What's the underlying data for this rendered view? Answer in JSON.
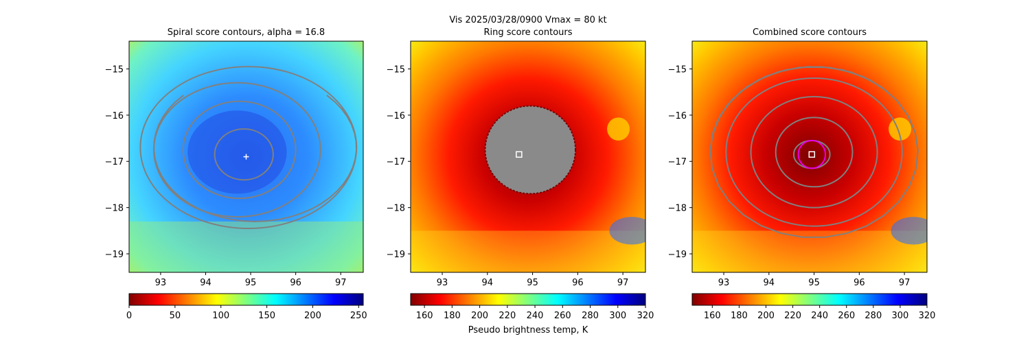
{
  "figure": {
    "suptitle_line1": "Vis  2025/03/28/0900    Vmax = 80 kt",
    "colors": {
      "contour": "#808080",
      "marker": "#ffffff",
      "ring": "#e600e6"
    }
  },
  "chart_data": [
    {
      "type": "heatmap",
      "title": "Spiral score contours, alpha = 16.8",
      "xlabel": "",
      "ylabel": "",
      "xlim": [
        92.3,
        97.5
      ],
      "ylim": [
        -19.4,
        -14.4
      ],
      "xticks": [
        93,
        94,
        95,
        96,
        97
      ],
      "yticks": [
        -15,
        -16,
        -17,
        -18,
        -19
      ],
      "xtick_labels": [
        "93",
        "94",
        "95",
        "96",
        "97"
      ],
      "ytick_labels": [
        "−15",
        "−16",
        "−17",
        "−18",
        "−19"
      ],
      "colormap": "jet_r",
      "colorbar": {
        "range": [
          0,
          255
        ],
        "ticks": [
          0,
          50,
          100,
          150,
          200,
          250
        ],
        "tick_labels": [
          "0",
          "50",
          "100",
          "150",
          "200",
          "250"
        ],
        "label": ""
      },
      "center_marker": {
        "x": 94.9,
        "y": -16.9,
        "symbol": "+"
      },
      "contours": [
        {
          "cx": 94.85,
          "cy": -16.85,
          "rx": 0.65,
          "ry": 0.55
        },
        {
          "cx": 94.75,
          "cy": -16.75,
          "rx": 1.25,
          "ry": 1.05
        },
        {
          "cx": 94.7,
          "cy": -16.75,
          "rx": 1.85,
          "ry": 1.45
        },
        {
          "cx": 94.95,
          "cy": -16.7,
          "rx": 2.4,
          "ry": 1.75
        },
        {
          "cx": 95.1,
          "cy": -16.7,
          "rx": 2.25,
          "ry": 1.6,
          "start": 0.75,
          "end": 2.25
        }
      ]
    },
    {
      "type": "heatmap",
      "title": "Ring score contours",
      "xlabel": "",
      "ylabel": "",
      "xlim": [
        92.3,
        97.5
      ],
      "ylim": [
        -19.4,
        -14.4
      ],
      "xticks": [
        93,
        94,
        95,
        96,
        97
      ],
      "yticks": [
        -15,
        -16,
        -17,
        -18,
        -19
      ],
      "xtick_labels": [
        "93",
        "94",
        "95",
        "96",
        "97"
      ],
      "ytick_labels": [
        "−15",
        "−16",
        "−17",
        "−18",
        "−19"
      ],
      "colormap": "jet_r",
      "colorbar": {
        "range": [
          150,
          320
        ],
        "ticks": [
          160,
          180,
          200,
          220,
          240,
          260,
          280,
          300,
          320
        ],
        "tick_labels": [
          "160",
          "180",
          "200",
          "220",
          "240",
          "260",
          "280",
          "300",
          "320"
        ],
        "label": "Pseudo brightness temp, K"
      },
      "center_marker": {
        "x": 94.7,
        "y": -16.85,
        "symbol": "square"
      },
      "eye_region": {
        "cx": 94.95,
        "cy": -16.75,
        "rx": 1.0,
        "ry": 0.95
      }
    },
    {
      "type": "heatmap",
      "title": "Combined score contours",
      "xlabel": "",
      "ylabel": "",
      "xlim": [
        92.3,
        97.5
      ],
      "ylim": [
        -19.4,
        -14.4
      ],
      "xticks": [
        93,
        94,
        95,
        96,
        97
      ],
      "yticks": [
        -15,
        -16,
        -17,
        -18,
        -19
      ],
      "xtick_labels": [
        "93",
        "94",
        "95",
        "96",
        "97"
      ],
      "ytick_labels": [
        "−15",
        "−16",
        "−17",
        "−18",
        "−19"
      ],
      "colormap": "jet_r",
      "colorbar": {
        "range": [
          145,
          320
        ],
        "ticks": [
          160,
          180,
          200,
          220,
          240,
          260,
          280,
          300,
          320
        ],
        "tick_labels": [
          "160",
          "180",
          "200",
          "220",
          "240",
          "260",
          "280",
          "300",
          "320"
        ],
        "label": ""
      },
      "center_marker": {
        "x": 94.95,
        "y": -16.85,
        "symbol": "square"
      },
      "ring": {
        "cx": 94.95,
        "cy": -16.85,
        "r": 0.3
      },
      "contours": [
        {
          "cx": 94.95,
          "cy": -16.85,
          "rx": 0.4,
          "ry": 0.3
        },
        {
          "cx": 95.0,
          "cy": -16.8,
          "rx": 0.85,
          "ry": 0.75
        },
        {
          "cx": 95.0,
          "cy": -16.8,
          "rx": 1.4,
          "ry": 1.2
        },
        {
          "cx": 95.0,
          "cy": -16.8,
          "rx": 1.95,
          "ry": 1.6
        },
        {
          "cx": 95.0,
          "cy": -16.8,
          "rx": 2.3,
          "ry": 1.85,
          "start": 0.25,
          "end": 2.95
        }
      ]
    }
  ]
}
